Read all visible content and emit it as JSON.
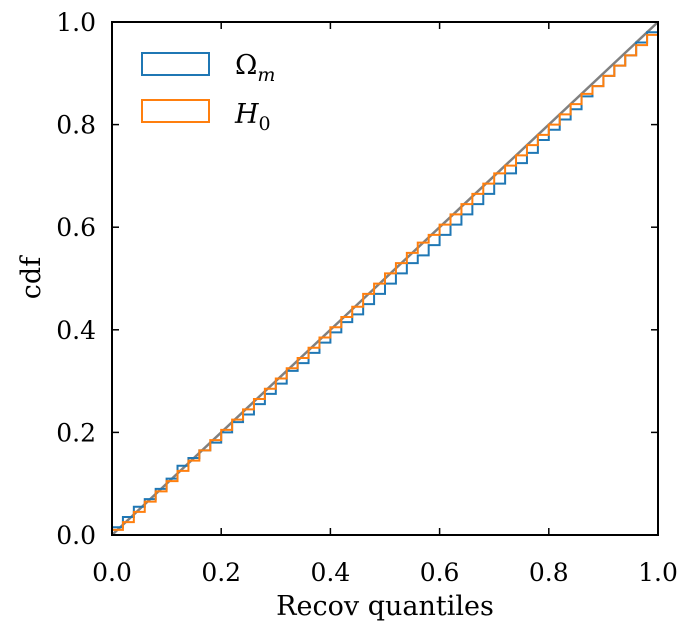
{
  "chart_data": {
    "type": "line",
    "title": "",
    "xlabel": "Recov quantiles",
    "ylabel": "cdf",
    "xlim": [
      0.0,
      1.0
    ],
    "ylim": [
      0.0,
      1.0
    ],
    "grid": false,
    "legend_position": "top-left",
    "xticks": [
      "0.0",
      "0.2",
      "0.4",
      "0.6",
      "0.8",
      "1.0"
    ],
    "yticks": [
      "0.0",
      "0.2",
      "0.4",
      "0.6",
      "0.8",
      "1.0"
    ],
    "reference_line": {
      "name": "diagonal",
      "x": [
        0,
        1
      ],
      "y": [
        0,
        1
      ],
      "color": "#808080"
    },
    "series": [
      {
        "name": "Ω",
        "name_sub": "m",
        "style": "step",
        "color": "#1f77b4",
        "x": [
          0.0,
          0.02,
          0.04,
          0.06,
          0.08,
          0.1,
          0.12,
          0.14,
          0.16,
          0.18,
          0.2,
          0.22,
          0.24,
          0.26,
          0.28,
          0.3,
          0.32,
          0.34,
          0.36,
          0.38,
          0.4,
          0.42,
          0.44,
          0.46,
          0.48,
          0.5,
          0.52,
          0.54,
          0.56,
          0.58,
          0.6,
          0.62,
          0.64,
          0.66,
          0.68,
          0.7,
          0.72,
          0.74,
          0.76,
          0.78,
          0.8,
          0.82,
          0.84,
          0.86,
          0.88,
          0.9,
          0.92,
          0.94,
          0.96,
          0.98,
          1.0
        ],
        "y": [
          0.015,
          0.035,
          0.055,
          0.07,
          0.09,
          0.11,
          0.135,
          0.15,
          0.165,
          0.18,
          0.2,
          0.22,
          0.235,
          0.255,
          0.275,
          0.295,
          0.32,
          0.335,
          0.355,
          0.375,
          0.395,
          0.415,
          0.43,
          0.45,
          0.47,
          0.49,
          0.51,
          0.53,
          0.545,
          0.565,
          0.585,
          0.605,
          0.625,
          0.645,
          0.665,
          0.685,
          0.705,
          0.725,
          0.745,
          0.77,
          0.79,
          0.81,
          0.83,
          0.855,
          0.875,
          0.895,
          0.915,
          0.935,
          0.96,
          0.98,
          1.0
        ]
      },
      {
        "name": "H",
        "name_sub": "0",
        "style": "step",
        "color": "#ff7f0e",
        "x": [
          0.0,
          0.02,
          0.04,
          0.06,
          0.08,
          0.1,
          0.12,
          0.14,
          0.16,
          0.18,
          0.2,
          0.22,
          0.24,
          0.26,
          0.28,
          0.3,
          0.32,
          0.34,
          0.36,
          0.38,
          0.4,
          0.42,
          0.44,
          0.46,
          0.48,
          0.5,
          0.52,
          0.54,
          0.56,
          0.58,
          0.6,
          0.62,
          0.64,
          0.66,
          0.68,
          0.7,
          0.72,
          0.74,
          0.76,
          0.78,
          0.8,
          0.82,
          0.84,
          0.86,
          0.88,
          0.9,
          0.92,
          0.94,
          0.96,
          0.98,
          1.0
        ],
        "y": [
          0.01,
          0.025,
          0.045,
          0.065,
          0.085,
          0.105,
          0.125,
          0.145,
          0.165,
          0.185,
          0.205,
          0.225,
          0.245,
          0.265,
          0.285,
          0.305,
          0.325,
          0.345,
          0.365,
          0.385,
          0.405,
          0.425,
          0.445,
          0.47,
          0.49,
          0.51,
          0.53,
          0.55,
          0.57,
          0.585,
          0.605,
          0.625,
          0.645,
          0.665,
          0.685,
          0.705,
          0.72,
          0.74,
          0.76,
          0.78,
          0.8,
          0.82,
          0.84,
          0.86,
          0.875,
          0.895,
          0.915,
          0.935,
          0.955,
          0.975,
          1.0
        ]
      }
    ]
  }
}
